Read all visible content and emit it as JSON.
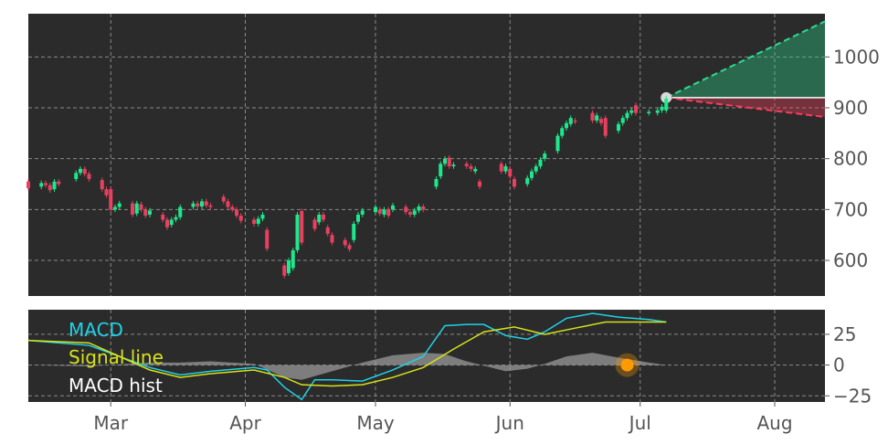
{
  "colors": {
    "panel_bg": "#2b2b2b",
    "grid": "#8a8a8a",
    "tick_text": "#555555",
    "candle_up": "#1ee88c",
    "candle_down": "#e8405f",
    "forecast_up": "#2bdc8f",
    "forecast_down": "#ff3b5c",
    "macd_line": "#1fd2e6",
    "signal_line": "#d6e21a",
    "hist_fill": "#9a9a9a",
    "marker_orange": "#ff9a00",
    "marker_gray": "#d9d9d9"
  },
  "chart_data": [
    {
      "type": "candlestick",
      "title": "",
      "xlabel": "",
      "ylabel": "",
      "ylim": [
        530,
        1085
      ],
      "y_ticks": [
        600,
        700,
        800,
        900,
        1000
      ],
      "grid": true,
      "candles": [
        {
          "d": "2/10",
          "o": 755,
          "c": 742
        },
        {
          "d": "2/13",
          "o": 745,
          "c": 752
        },
        {
          "d": "2/14",
          "o": 752,
          "c": 748
        },
        {
          "d": "2/15",
          "o": 748,
          "c": 738
        },
        {
          "d": "2/16",
          "o": 740,
          "c": 755
        },
        {
          "d": "2/17",
          "o": 755,
          "c": 750
        },
        {
          "d": "2/21",
          "o": 760,
          "c": 772
        },
        {
          "d": "2/22",
          "o": 772,
          "c": 780
        },
        {
          "d": "2/23",
          "o": 780,
          "c": 770
        },
        {
          "d": "2/24",
          "o": 770,
          "c": 760
        },
        {
          "d": "2/27",
          "o": 758,
          "c": 740
        },
        {
          "d": "2/28",
          "o": 740,
          "c": 728
        },
        {
          "d": "3/1",
          "o": 740,
          "c": 700
        },
        {
          "d": "3/2",
          "o": 700,
          "c": 705
        },
        {
          "d": "3/3",
          "o": 705,
          "c": 712
        },
        {
          "d": "3/6",
          "o": 712,
          "c": 690
        },
        {
          "d": "3/7",
          "o": 692,
          "c": 712
        },
        {
          "d": "3/8",
          "o": 710,
          "c": 700
        },
        {
          "d": "3/9",
          "o": 700,
          "c": 688
        },
        {
          "d": "3/10",
          "o": 690,
          "c": 698
        },
        {
          "d": "3/13",
          "o": 690,
          "c": 680
        },
        {
          "d": "3/14",
          "o": 680,
          "c": 665
        },
        {
          "d": "3/15",
          "o": 670,
          "c": 680
        },
        {
          "d": "3/16",
          "o": 680,
          "c": 685
        },
        {
          "d": "3/17",
          "o": 685,
          "c": 705
        },
        {
          "d": "3/20",
          "o": 705,
          "c": 712
        },
        {
          "d": "3/21",
          "o": 712,
          "c": 706
        },
        {
          "d": "3/22",
          "o": 706,
          "c": 716
        },
        {
          "d": "3/23",
          "o": 716,
          "c": 708
        },
        {
          "d": "3/24",
          "o": 708,
          "c": 705
        },
        {
          "d": "3/27",
          "o": 725,
          "c": 716
        },
        {
          "d": "3/28",
          "o": 716,
          "c": 705
        },
        {
          "d": "3/29",
          "o": 705,
          "c": 700
        },
        {
          "d": "3/30",
          "o": 700,
          "c": 688
        },
        {
          "d": "3/31",
          "o": 688,
          "c": 678
        },
        {
          "d": "4/3",
          "o": 680,
          "c": 672
        },
        {
          "d": "4/4",
          "o": 672,
          "c": 682
        },
        {
          "d": "4/5",
          "o": 682,
          "c": 690
        },
        {
          "d": "4/6",
          "o": 660,
          "c": 623
        },
        {
          "d": "4/10",
          "o": 590,
          "c": 570
        },
        {
          "d": "4/11",
          "o": 575,
          "c": 600
        },
        {
          "d": "4/12",
          "o": 585,
          "c": 620
        },
        {
          "d": "4/13",
          "o": 620,
          "c": 690
        },
        {
          "d": "4/14",
          "o": 697,
          "c": 635
        },
        {
          "d": "4/17",
          "o": 680,
          "c": 662
        },
        {
          "d": "4/18",
          "o": 675,
          "c": 690
        },
        {
          "d": "4/19",
          "o": 690,
          "c": 680
        },
        {
          "d": "4/20",
          "o": 665,
          "c": 652
        },
        {
          "d": "4/21",
          "o": 650,
          "c": 635
        },
        {
          "d": "4/24",
          "o": 640,
          "c": 630
        },
        {
          "d": "4/25",
          "o": 630,
          "c": 622
        },
        {
          "d": "4/26",
          "o": 640,
          "c": 672
        },
        {
          "d": "4/27",
          "o": 676,
          "c": 690
        },
        {
          "d": "4/28",
          "o": 690,
          "c": 698
        },
        {
          "d": "5/1",
          "o": 695,
          "c": 705
        },
        {
          "d": "5/2",
          "o": 700,
          "c": 692
        },
        {
          "d": "5/3",
          "o": 690,
          "c": 700
        },
        {
          "d": "5/4",
          "o": 700,
          "c": 688
        },
        {
          "d": "5/5",
          "o": 700,
          "c": 708
        },
        {
          "d": "5/8",
          "o": 705,
          "c": 695
        },
        {
          "d": "5/9",
          "o": 695,
          "c": 690
        },
        {
          "d": "5/10",
          "o": 690,
          "c": 698
        },
        {
          "d": "5/11",
          "o": 698,
          "c": 706
        },
        {
          "d": "5/12",
          "o": 706,
          "c": 700
        },
        {
          "d": "5/15",
          "o": 745,
          "c": 760
        },
        {
          "d": "5/16",
          "o": 765,
          "c": 790
        },
        {
          "d": "5/17",
          "o": 790,
          "c": 800
        },
        {
          "d": "5/18",
          "o": 802,
          "c": 785
        },
        {
          "d": "5/19",
          "o": 785,
          "c": 788
        },
        {
          "d": "5/22",
          "o": 790,
          "c": 785
        },
        {
          "d": "5/23",
          "o": 785,
          "c": 780
        },
        {
          "d": "5/24",
          "o": 775,
          "c": 780
        },
        {
          "d": "5/25",
          "o": 755,
          "c": 745
        },
        {
          "d": "5/30",
          "o": 790,
          "c": 775
        },
        {
          "d": "5/31",
          "o": 775,
          "c": 785
        },
        {
          "d": "6/1",
          "o": 780,
          "c": 765
        },
        {
          "d": "6/2",
          "o": 760,
          "c": 745
        },
        {
          "d": "6/5",
          "o": 750,
          "c": 762
        },
        {
          "d": "6/6",
          "o": 762,
          "c": 775
        },
        {
          "d": "6/7",
          "o": 775,
          "c": 785
        },
        {
          "d": "6/8",
          "o": 785,
          "c": 798
        },
        {
          "d": "6/9",
          "o": 800,
          "c": 810
        },
        {
          "d": "6/12",
          "o": 815,
          "c": 845
        },
        {
          "d": "6/13",
          "o": 845,
          "c": 860
        },
        {
          "d": "6/14",
          "o": 860,
          "c": 870
        },
        {
          "d": "6/15",
          "o": 868,
          "c": 880
        },
        {
          "d": "6/16",
          "o": 875,
          "c": 873
        },
        {
          "d": "6/20",
          "o": 890,
          "c": 875
        },
        {
          "d": "6/21",
          "o": 875,
          "c": 885
        },
        {
          "d": "6/22",
          "o": 878,
          "c": 870
        },
        {
          "d": "6/23",
          "o": 880,
          "c": 845
        },
        {
          "d": "6/26",
          "o": 855,
          "c": 868
        },
        {
          "d": "6/27",
          "o": 870,
          "c": 880
        },
        {
          "d": "6/28",
          "o": 880,
          "c": 890
        },
        {
          "d": "6/29",
          "o": 890,
          "c": 895
        },
        {
          "d": "6/30",
          "o": 905,
          "c": 890
        },
        {
          "d": "7/3",
          "o": 890,
          "c": 892
        },
        {
          "d": "7/5",
          "o": 890,
          "c": 895
        },
        {
          "d": "7/6",
          "o": 895,
          "c": 902
        },
        {
          "d": "7/7",
          "o": 895,
          "c": 918
        }
      ],
      "forecast": {
        "from_date": "7/7",
        "from_value": 920,
        "to_date": "8/11",
        "upper_end": 1070,
        "lower_end": 882
      }
    },
    {
      "type": "line",
      "ylim": [
        -30,
        45
      ],
      "y_ticks": [
        25,
        0,
        -25
      ],
      "y_tick_labels": [
        "25",
        "0",
        "−25"
      ],
      "grid": true,
      "legend_placement": "upper-left",
      "series": [
        {
          "name": "MACD",
          "key": "macd",
          "x": [
            "2/10",
            "2/24",
            "3/10",
            "3/17",
            "3/24",
            "4/3",
            "4/6",
            "4/10",
            "4/14",
            "4/17",
            "4/21",
            "4/28",
            "5/5",
            "5/12",
            "5/15",
            "5/17",
            "5/22",
            "5/26",
            "5/31",
            "6/5",
            "6/9",
            "6/14",
            "6/20",
            "6/26",
            "7/3",
            "7/7"
          ],
          "values": [
            20,
            16,
            -2,
            -8,
            -5,
            -2,
            -4,
            -18,
            -28,
            -12,
            -12,
            -13,
            -4,
            7,
            22,
            32,
            33,
            33,
            24,
            21,
            27,
            38,
            42,
            39,
            37,
            35
          ]
        },
        {
          "name": "Signal line",
          "key": "signal",
          "x": [
            "2/10",
            "2/24",
            "3/10",
            "3/17",
            "3/24",
            "4/3",
            "4/10",
            "4/14",
            "4/21",
            "4/28",
            "5/5",
            "5/12",
            "5/19",
            "5/26",
            "6/2",
            "6/9",
            "6/16",
            "6/23",
            "7/3",
            "7/7"
          ],
          "values": [
            20,
            18,
            -4,
            -10,
            -7,
            -4,
            -10,
            -16,
            -17,
            -16,
            -10,
            -2,
            13,
            27,
            31,
            25,
            30,
            35,
            35,
            35
          ]
        },
        {
          "name": "MACD hist",
          "key": "hist",
          "x": [
            "2/10",
            "2/24",
            "3/10",
            "3/17",
            "3/24",
            "4/3",
            "4/10",
            "4/14",
            "4/21",
            "4/28",
            "5/5",
            "5/12",
            "5/17",
            "5/22",
            "5/31",
            "6/5",
            "6/9",
            "6/14",
            "6/20",
            "6/26",
            "7/3",
            "7/7"
          ],
          "values": [
            0,
            -1,
            2,
            2,
            3,
            1,
            -10,
            -12,
            -5,
            2,
            8,
            10,
            9,
            3,
            -5,
            -3,
            1,
            7,
            10,
            6,
            2,
            0
          ]
        }
      ],
      "marker": {
        "date": "6/28",
        "value": 0
      }
    }
  ],
  "x_axis": {
    "ticks": [
      {
        "label": "Mar",
        "date": "3/1"
      },
      {
        "label": "Apr",
        "date": "4/1"
      },
      {
        "label": "May",
        "date": "5/1"
      },
      {
        "label": "Jun",
        "date": "6/1"
      },
      {
        "label": "Jul",
        "date": "7/1"
      },
      {
        "label": "Aug",
        "date": "8/1"
      }
    ]
  },
  "legend": {
    "macd": "MACD",
    "signal": "Signal line",
    "hist": "MACD hist"
  }
}
